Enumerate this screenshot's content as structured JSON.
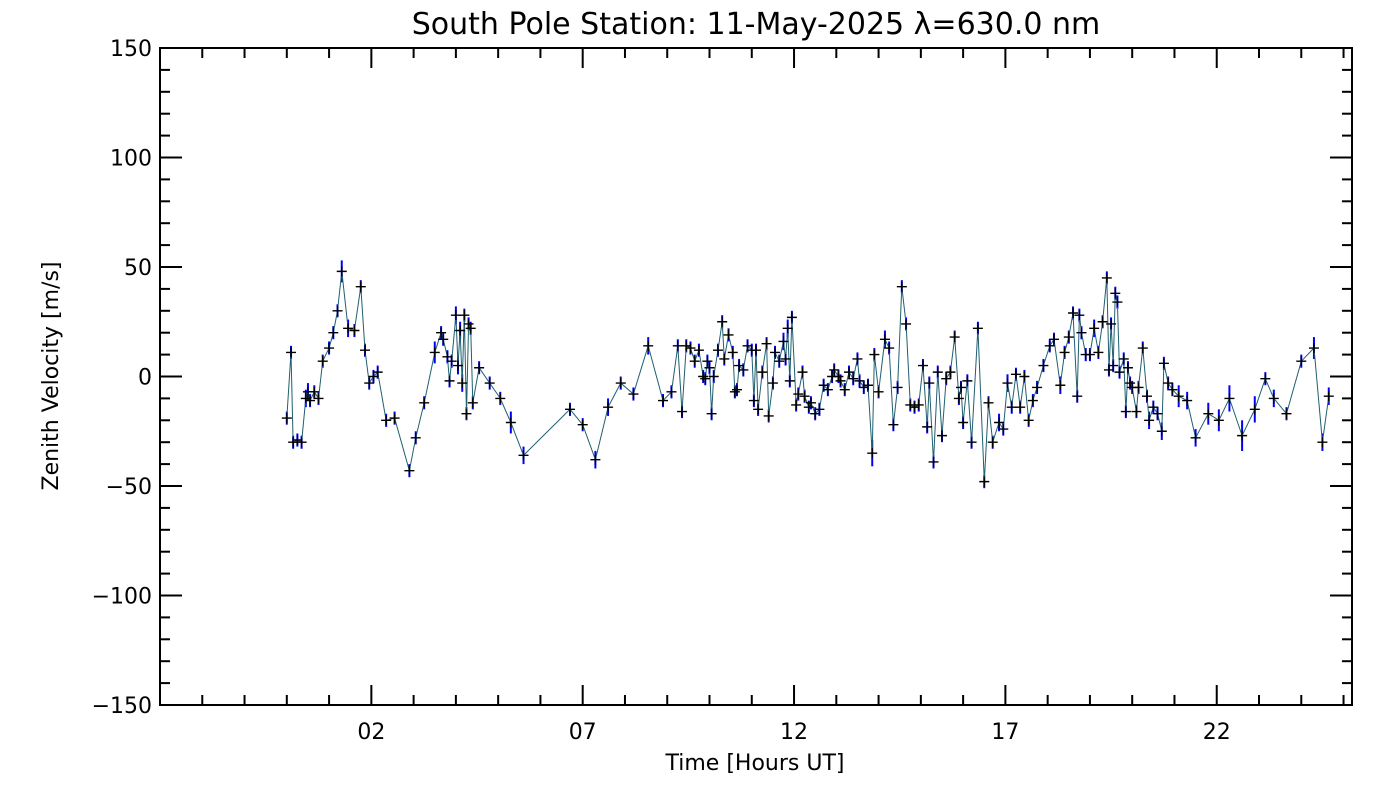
{
  "chart_data": {
    "type": "line",
    "title": "South Pole Station: 11-May-2025 λ=630.0 nm",
    "xlabel": "Time [Hours UT]",
    "ylabel": "Zenith Velocity [m/s]",
    "xlim": [
      -3,
      25.2
    ],
    "ylim": [
      -150,
      150
    ],
    "x_ticks": [
      2,
      7,
      12,
      17,
      22
    ],
    "x_tick_labels": [
      "02",
      "07",
      "12",
      "17",
      "22"
    ],
    "y_ticks": [
      -150,
      -100,
      -50,
      0,
      50,
      100,
      150
    ],
    "y_tick_labels": [
      "-150",
      "-100",
      "-50",
      "0",
      "50",
      "100",
      "150"
    ],
    "grid": false,
    "series": [
      {
        "name": "Zenith velocity",
        "line_color": "#1f5f6f",
        "errorbar_color": "#0000ff",
        "marker_color": "#000000",
        "points": [
          [
            0.0,
            -19,
            3
          ],
          [
            0.1,
            11,
            3
          ],
          [
            0.15,
            -30,
            3
          ],
          [
            0.25,
            -29,
            3
          ],
          [
            0.35,
            -30,
            3
          ],
          [
            0.45,
            -10,
            4
          ],
          [
            0.5,
            -7,
            4
          ],
          [
            0.55,
            -11,
            3
          ],
          [
            0.65,
            -7,
            3
          ],
          [
            0.75,
            -10,
            3
          ],
          [
            0.85,
            7,
            3
          ],
          [
            1.0,
            13,
            3
          ],
          [
            1.1,
            20,
            3
          ],
          [
            1.2,
            30,
            3
          ],
          [
            1.3,
            48,
            5
          ],
          [
            1.45,
            22,
            4
          ],
          [
            1.6,
            21,
            3
          ],
          [
            1.75,
            41,
            3
          ],
          [
            1.85,
            12,
            3
          ],
          [
            1.95,
            -3,
            3
          ],
          [
            2.05,
            0,
            3
          ],
          [
            2.15,
            2,
            3
          ],
          [
            2.35,
            -20,
            3
          ],
          [
            2.55,
            -19,
            3
          ],
          [
            2.9,
            -43,
            3
          ],
          [
            3.05,
            -28,
            3
          ],
          [
            3.25,
            -12,
            3
          ],
          [
            3.5,
            11,
            5
          ],
          [
            3.65,
            20,
            3
          ],
          [
            3.7,
            17,
            3
          ],
          [
            3.8,
            9,
            3
          ],
          [
            3.85,
            -2,
            3
          ],
          [
            3.9,
            7,
            3
          ],
          [
            4.0,
            28,
            4
          ],
          [
            4.05,
            5,
            4
          ],
          [
            4.1,
            21,
            4
          ],
          [
            4.15,
            -3,
            4
          ],
          [
            4.2,
            28,
            3
          ],
          [
            4.25,
            -17,
            3
          ],
          [
            4.3,
            24,
            3
          ],
          [
            4.35,
            22,
            3
          ],
          [
            4.4,
            -12,
            3
          ],
          [
            4.55,
            4,
            3
          ],
          [
            4.8,
            -3,
            3
          ],
          [
            5.05,
            -10,
            3
          ],
          [
            5.3,
            -21,
            5
          ],
          [
            5.6,
            -36,
            4
          ],
          [
            6.7,
            -15,
            3
          ],
          [
            7.0,
            -22,
            3
          ],
          [
            7.3,
            -38,
            4
          ],
          [
            7.6,
            -14,
            4
          ],
          [
            7.9,
            -3,
            3
          ],
          [
            8.2,
            -8,
            3
          ],
          [
            8.55,
            14,
            4
          ],
          [
            8.9,
            -11,
            3
          ],
          [
            9.1,
            -7,
            3
          ],
          [
            9.25,
            14,
            3
          ],
          [
            9.35,
            -16,
            3
          ],
          [
            9.45,
            14,
            3
          ],
          [
            9.55,
            13,
            3
          ],
          [
            9.65,
            7,
            3
          ],
          [
            9.75,
            12,
            3
          ],
          [
            9.85,
            0,
            3
          ],
          [
            9.9,
            -1,
            3
          ],
          [
            9.95,
            7,
            3
          ],
          [
            10.0,
            4,
            3
          ],
          [
            10.05,
            -17,
            3
          ],
          [
            10.1,
            0,
            3
          ],
          [
            10.2,
            12,
            3
          ],
          [
            10.3,
            25,
            3
          ],
          [
            10.35,
            8,
            3
          ],
          [
            10.45,
            19,
            3
          ],
          [
            10.55,
            11,
            3
          ],
          [
            10.6,
            -7,
            3
          ],
          [
            10.65,
            -6,
            3
          ],
          [
            10.7,
            5,
            3
          ],
          [
            10.8,
            3,
            3
          ],
          [
            10.9,
            14,
            3
          ],
          [
            11.0,
            12,
            3
          ],
          [
            11.05,
            -11,
            3
          ],
          [
            11.1,
            12,
            3
          ],
          [
            11.15,
            -15,
            3
          ],
          [
            11.25,
            2,
            3
          ],
          [
            11.35,
            15,
            3
          ],
          [
            11.4,
            -18,
            3
          ],
          [
            11.5,
            -3,
            3
          ],
          [
            11.55,
            11,
            3
          ],
          [
            11.65,
            7,
            3
          ],
          [
            11.75,
            16,
            4
          ],
          [
            11.8,
            8,
            3
          ],
          [
            11.85,
            22,
            4
          ],
          [
            11.9,
            -2,
            3
          ],
          [
            11.95,
            27,
            3
          ],
          [
            12.05,
            -13,
            3
          ],
          [
            12.1,
            -8,
            3
          ],
          [
            12.2,
            2,
            3
          ],
          [
            12.25,
            -9,
            3
          ],
          [
            12.35,
            -14,
            3
          ],
          [
            12.4,
            -12,
            3
          ],
          [
            12.5,
            -17,
            3
          ],
          [
            12.6,
            -15,
            3
          ],
          [
            12.7,
            -4,
            3
          ],
          [
            12.8,
            -6,
            3
          ],
          [
            12.9,
            0,
            3
          ],
          [
            12.95,
            3,
            3
          ],
          [
            13.05,
            0,
            3
          ],
          [
            13.1,
            -2,
            3
          ],
          [
            13.2,
            -6,
            3
          ],
          [
            13.3,
            2,
            3
          ],
          [
            13.4,
            -1,
            3
          ],
          [
            13.5,
            8,
            3
          ],
          [
            13.55,
            -2,
            3
          ],
          [
            13.65,
            -5,
            3
          ],
          [
            13.75,
            -4,
            3
          ],
          [
            13.85,
            -35,
            6
          ],
          [
            13.9,
            10,
            3
          ],
          [
            14.0,
            -7,
            3
          ],
          [
            14.15,
            17,
            4
          ],
          [
            14.25,
            13,
            3
          ],
          [
            14.35,
            -22,
            3
          ],
          [
            14.45,
            -5,
            3
          ],
          [
            14.55,
            41,
            3
          ],
          [
            14.65,
            24,
            3
          ],
          [
            14.75,
            -13,
            3
          ],
          [
            14.85,
            -14,
            3
          ],
          [
            14.95,
            -13,
            3
          ],
          [
            15.05,
            5,
            3
          ],
          [
            15.15,
            -23,
            3
          ],
          [
            15.2,
            -3,
            3
          ],
          [
            15.3,
            -39,
            3
          ],
          [
            15.4,
            2,
            3
          ],
          [
            15.5,
            -27,
            3
          ],
          [
            15.6,
            -1,
            3
          ],
          [
            15.7,
            2,
            3
          ],
          [
            15.8,
            18,
            3
          ],
          [
            15.9,
            -10,
            3
          ],
          [
            15.95,
            -5,
            3
          ],
          [
            16.0,
            -21,
            3
          ],
          [
            16.1,
            -2,
            3
          ],
          [
            16.2,
            -30,
            3
          ],
          [
            16.35,
            22,
            3
          ],
          [
            16.5,
            -48,
            3
          ],
          [
            16.6,
            -12,
            3
          ],
          [
            16.7,
            -30,
            3
          ],
          [
            16.85,
            -21,
            4
          ],
          [
            16.95,
            -24,
            3
          ],
          [
            17.05,
            -3,
            4
          ],
          [
            17.15,
            -14,
            3
          ],
          [
            17.25,
            1,
            3
          ],
          [
            17.35,
            -14,
            3
          ],
          [
            17.45,
            0,
            3
          ],
          [
            17.55,
            -20,
            3
          ],
          [
            17.65,
            -11,
            3
          ],
          [
            17.75,
            -5,
            3
          ],
          [
            17.9,
            5,
            3
          ],
          [
            18.05,
            14,
            3
          ],
          [
            18.15,
            17,
            3
          ],
          [
            18.3,
            -4,
            4
          ],
          [
            18.4,
            11,
            3
          ],
          [
            18.5,
            18,
            3
          ],
          [
            18.6,
            29,
            3
          ],
          [
            18.7,
            -9,
            3
          ],
          [
            18.75,
            28,
            3
          ],
          [
            18.8,
            20,
            3
          ],
          [
            18.9,
            10,
            3
          ],
          [
            19.0,
            10,
            3
          ],
          [
            19.1,
            22,
            4
          ],
          [
            19.2,
            11,
            3
          ],
          [
            19.3,
            25,
            3
          ],
          [
            19.4,
            45,
            3
          ],
          [
            19.45,
            3,
            3
          ],
          [
            19.5,
            24,
            3
          ],
          [
            19.55,
            5,
            3
          ],
          [
            19.6,
            38,
            3
          ],
          [
            19.65,
            34,
            3
          ],
          [
            19.7,
            2,
            3
          ],
          [
            19.8,
            8,
            3
          ],
          [
            19.85,
            -16,
            3
          ],
          [
            19.9,
            4,
            3
          ],
          [
            19.95,
            -3,
            3
          ],
          [
            20.0,
            -5,
            3
          ],
          [
            20.1,
            -16,
            3
          ],
          [
            20.15,
            -5,
            3
          ],
          [
            20.25,
            13,
            3
          ],
          [
            20.35,
            -9,
            3
          ],
          [
            20.4,
            -20,
            4
          ],
          [
            20.5,
            -14,
            3
          ],
          [
            20.6,
            -17,
            3
          ],
          [
            20.7,
            -25,
            4
          ],
          [
            20.75,
            6,
            3
          ],
          [
            20.85,
            -3,
            3
          ],
          [
            20.95,
            -6,
            3
          ],
          [
            21.1,
            -9,
            5
          ],
          [
            21.3,
            -11,
            4
          ],
          [
            21.5,
            -28,
            4
          ],
          [
            21.8,
            -17,
            5
          ],
          [
            22.05,
            -20,
            5
          ],
          [
            22.3,
            -10,
            6
          ],
          [
            22.6,
            -27,
            7
          ],
          [
            22.9,
            -15,
            6
          ],
          [
            23.15,
            -1,
            3
          ],
          [
            23.35,
            -10,
            4
          ],
          [
            23.65,
            -17,
            3
          ],
          [
            24.0,
            7,
            3
          ],
          [
            24.3,
            13,
            5
          ],
          [
            24.5,
            -30,
            4
          ],
          [
            24.65,
            -9,
            4
          ]
        ]
      }
    ]
  }
}
